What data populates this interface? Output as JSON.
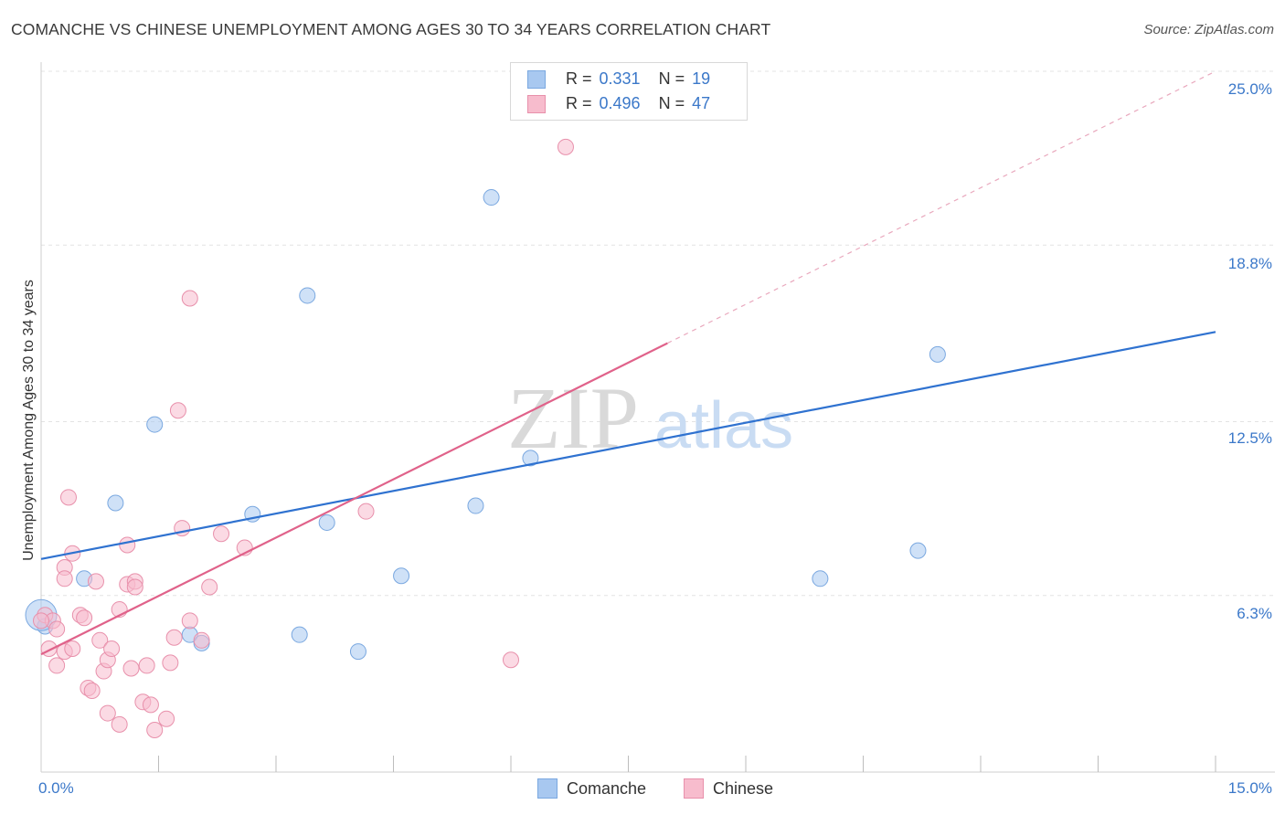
{
  "title": "COMANCHE VS CHINESE UNEMPLOYMENT AMONG AGES 30 TO 34 YEARS CORRELATION CHART",
  "source": "Source: ZipAtlas.com",
  "watermark": {
    "zip": "ZIP",
    "atlas": "atlas"
  },
  "legend_top": {
    "rows": [
      {
        "r_label": "R = ",
        "r_value": "0.331",
        "n_label": "N = ",
        "n_value": "19",
        "color": "#a8c8f0",
        "border": "#7aa8e0"
      },
      {
        "r_label": "R = ",
        "r_value": "0.496",
        "n_label": "N = ",
        "n_value": "47",
        "color": "#f7bccd",
        "border": "#e890ab"
      }
    ]
  },
  "legend_bottom": [
    {
      "label": "Comanche",
      "color": "#a8c8f0",
      "border": "#7aa8e0"
    },
    {
      "label": "Chinese",
      "color": "#f7bccd",
      "border": "#e890ab"
    }
  ],
  "chart_data": {
    "type": "scatter",
    "title": "COMANCHE VS CHINESE UNEMPLOYMENT AMONG AGES 30 TO 34 YEARS CORRELATION CHART",
    "xlabel": "",
    "ylabel": "Unemployment Among Ages 30 to 34 years",
    "xlim": [
      0,
      15
    ],
    "ylim": [
      0,
      25
    ],
    "x_tick_labels": [
      "0.0%",
      "15.0%"
    ],
    "y_ticks": [
      6.3,
      12.5,
      18.8,
      25.0
    ],
    "y_tick_labels": [
      "6.3%",
      "12.5%",
      "18.8%",
      "25.0%"
    ],
    "grid": true,
    "legend_placement": "bottom",
    "series": [
      {
        "name": "Comanche",
        "color": "#a8c8f0",
        "line_color": "#2f72d0",
        "points": [
          [
            0.05,
            5.2
          ],
          [
            0.0,
            5.6
          ],
          [
            0.55,
            6.9
          ],
          [
            0.95,
            9.6
          ],
          [
            1.45,
            12.4
          ],
          [
            1.9,
            4.9
          ],
          [
            2.05,
            4.6
          ],
          [
            2.7,
            9.2
          ],
          [
            3.3,
            4.9
          ],
          [
            3.4,
            17.0
          ],
          [
            3.65,
            8.9
          ],
          [
            4.05,
            4.3
          ],
          [
            4.6,
            7.0
          ],
          [
            5.55,
            9.5
          ],
          [
            5.75,
            20.5
          ],
          [
            6.25,
            11.2
          ],
          [
            9.95,
            6.9
          ],
          [
            11.2,
            7.9
          ],
          [
            11.45,
            14.9
          ]
        ],
        "trend": {
          "x": [
            0,
            15
          ],
          "y": [
            7.6,
            15.7
          ]
        }
      },
      {
        "name": "Chinese",
        "color": "#f7bccd",
        "line_color": "#e0628a",
        "points": [
          [
            0.05,
            5.6
          ],
          [
            0.1,
            4.4
          ],
          [
            0.15,
            5.4
          ],
          [
            0.2,
            5.1
          ],
          [
            0.2,
            3.8
          ],
          [
            0.3,
            4.3
          ],
          [
            0.4,
            4.4
          ],
          [
            0.4,
            7.8
          ],
          [
            0.3,
            7.3
          ],
          [
            0.35,
            9.8
          ],
          [
            0.3,
            6.9
          ],
          [
            0.5,
            5.6
          ],
          [
            0.55,
            5.5
          ],
          [
            0.6,
            3.0
          ],
          [
            0.65,
            2.9
          ],
          [
            0.7,
            6.8
          ],
          [
            0.75,
            4.7
          ],
          [
            0.8,
            3.6
          ],
          [
            0.85,
            4.0
          ],
          [
            0.85,
            2.1
          ],
          [
            0.9,
            4.4
          ],
          [
            1.0,
            1.7
          ],
          [
            1.0,
            5.8
          ],
          [
            1.1,
            6.7
          ],
          [
            1.1,
            8.1
          ],
          [
            1.15,
            3.7
          ],
          [
            1.2,
            6.8
          ],
          [
            1.2,
            6.6
          ],
          [
            1.3,
            2.5
          ],
          [
            1.35,
            3.8
          ],
          [
            1.4,
            2.4
          ],
          [
            1.45,
            1.5
          ],
          [
            1.6,
            1.9
          ],
          [
            1.65,
            3.9
          ],
          [
            1.7,
            4.8
          ],
          [
            1.75,
            12.9
          ],
          [
            1.8,
            8.7
          ],
          [
            1.9,
            5.4
          ],
          [
            1.9,
            16.9
          ],
          [
            2.05,
            4.7
          ],
          [
            2.15,
            6.6
          ],
          [
            2.3,
            8.5
          ],
          [
            2.6,
            8.0
          ],
          [
            4.15,
            9.3
          ],
          [
            6.0,
            4.0
          ],
          [
            6.7,
            22.3
          ],
          [
            0.0,
            5.4
          ]
        ],
        "trend": {
          "x": [
            0,
            8.0
          ],
          "y": [
            4.2,
            15.3
          ]
        },
        "trend_extension": {
          "x": [
            8.0,
            15
          ],
          "y": [
            15.3,
            25.0
          ]
        }
      }
    ]
  }
}
